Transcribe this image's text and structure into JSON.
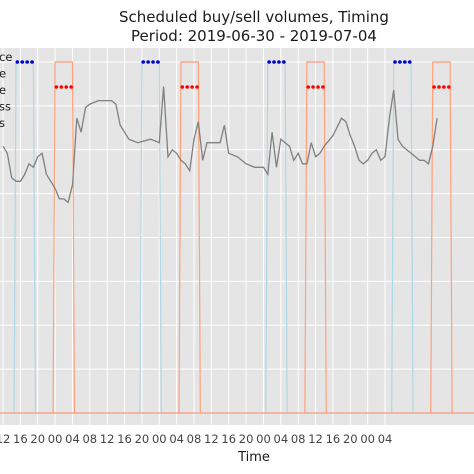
{
  "chart_data": {
    "type": "line",
    "title_line1": "Scheduled buy/sell volumes, Timing",
    "title_line2": "Period: 2019-06-30 - 2019-07-04",
    "xlabel": "Time",
    "x_tick_labels": [
      "12",
      "16",
      "20",
      "00",
      "04",
      "08",
      "12",
      "16",
      "20",
      "00",
      "04",
      "08",
      "12",
      "16",
      "20",
      "00",
      "04",
      "08",
      "12",
      "16",
      "20",
      "00",
      "04"
    ],
    "legend_fragments": [
      "ce",
      "e",
      "e",
      "ss",
      "s"
    ],
    "grid": true,
    "colors": {
      "price": "#808080",
      "buy_volume": "#add8e6",
      "sell_volume": "#ffa07a",
      "buy_marker": "#0000cd",
      "sell_marker": "#ff0000",
      "background": "#e5e5e5",
      "grid": "#ffffff"
    },
    "x_hours_start": 12,
    "x_hours_end": 120,
    "series": [
      {
        "id": "price",
        "points": [
          [
            12,
            0.76
          ],
          [
            13,
            0.74
          ],
          [
            14,
            0.67
          ],
          [
            15,
            0.66
          ],
          [
            16,
            0.66
          ],
          [
            17,
            0.68
          ],
          [
            18,
            0.71
          ],
          [
            19,
            0.7
          ],
          [
            20,
            0.73
          ],
          [
            21,
            0.74
          ],
          [
            22,
            0.68
          ],
          [
            23,
            0.66
          ],
          [
            24,
            0.64
          ],
          [
            25,
            0.61
          ],
          [
            26,
            0.61
          ],
          [
            27,
            0.6
          ],
          [
            28,
            0.65
          ],
          [
            29,
            0.84
          ],
          [
            30,
            0.8
          ],
          [
            31,
            0.87
          ],
          [
            32,
            0.88
          ],
          [
            34,
            0.89
          ],
          [
            37,
            0.89
          ],
          [
            38,
            0.88
          ],
          [
            39,
            0.82
          ],
          [
            41,
            0.78
          ],
          [
            43,
            0.77
          ],
          [
            46,
            0.78
          ],
          [
            48,
            0.77
          ],
          [
            49,
            0.93
          ],
          [
            50,
            0.73
          ],
          [
            51,
            0.75
          ],
          [
            52,
            0.74
          ],
          [
            53,
            0.72
          ],
          [
            54,
            0.71
          ],
          [
            55,
            0.69
          ],
          [
            56,
            0.78
          ],
          [
            57,
            0.83
          ],
          [
            58,
            0.72
          ],
          [
            59,
            0.77
          ],
          [
            60,
            0.77
          ],
          [
            62,
            0.77
          ],
          [
            63,
            0.82
          ],
          [
            64,
            0.74
          ],
          [
            66,
            0.73
          ],
          [
            68,
            0.71
          ],
          [
            70,
            0.7
          ],
          [
            72,
            0.7
          ],
          [
            73,
            0.68
          ],
          [
            74,
            0.8
          ],
          [
            75,
            0.7
          ],
          [
            76,
            0.78
          ],
          [
            78,
            0.76
          ],
          [
            79,
            0.72
          ],
          [
            80,
            0.74
          ],
          [
            81,
            0.71
          ],
          [
            82,
            0.71
          ],
          [
            83,
            0.77
          ],
          [
            84,
            0.73
          ],
          [
            85,
            0.74
          ],
          [
            86,
            0.76
          ],
          [
            88,
            0.79
          ],
          [
            90,
            0.84
          ],
          [
            91,
            0.83
          ],
          [
            92,
            0.79
          ],
          [
            93,
            0.76
          ],
          [
            94,
            0.72
          ],
          [
            95,
            0.71
          ],
          [
            96,
            0.72
          ],
          [
            97,
            0.74
          ],
          [
            98,
            0.75
          ],
          [
            99,
            0.72
          ],
          [
            100,
            0.73
          ],
          [
            101,
            0.84
          ],
          [
            102,
            0.92
          ],
          [
            103,
            0.78
          ],
          [
            104,
            0.76
          ],
          [
            105,
            0.75
          ],
          [
            106,
            0.74
          ],
          [
            107,
            0.73
          ],
          [
            108,
            0.72
          ],
          [
            109,
            0.72
          ],
          [
            110,
            0.71
          ],
          [
            111,
            0.76
          ],
          [
            112,
            0.84
          ]
        ]
      },
      {
        "id": "buy_volume",
        "windows": [
          [
            15,
            19
          ],
          [
            44,
            48
          ],
          [
            73,
            77
          ],
          [
            102,
            106
          ]
        ]
      },
      {
        "id": "sell_volume",
        "windows": [
          [
            24,
            28
          ],
          [
            53,
            57
          ],
          [
            82,
            86
          ],
          [
            111,
            115
          ]
        ]
      }
    ]
  }
}
